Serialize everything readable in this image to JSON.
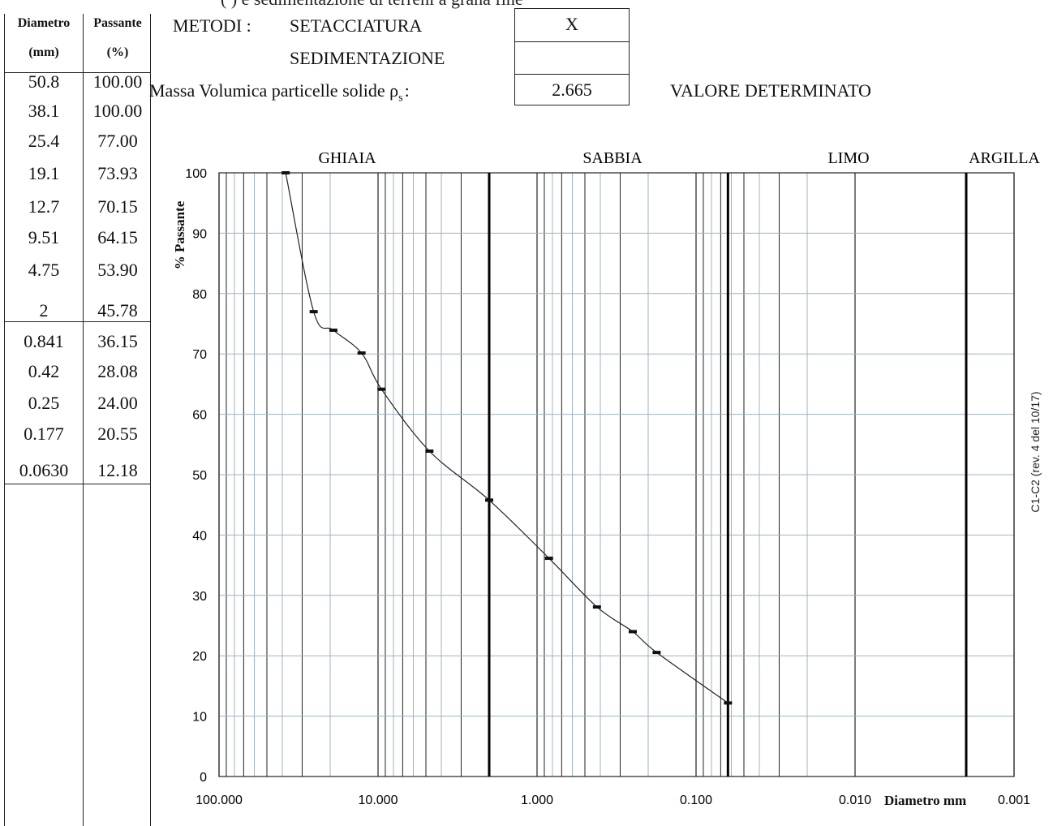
{
  "header": {
    "cutoff_text": "(                              )  e sedimentazione di terreni a grana fine",
    "method_label": "METODI :",
    "method_setacciatura": "SETACCIATURA",
    "method_sedimentazione": "SEDIMENTAZIONE",
    "setacciatura_mark": "X",
    "sedimentazione_mark": "",
    "density_label": "Massa Volumica particelle solide",
    "density_symbol": "ρ",
    "density_subscript": "s",
    "density_colon": ":",
    "density_value": "2.665",
    "density_status": "VALORE DETERMINATO"
  },
  "table": {
    "headers": [
      [
        "Diametro",
        "(mm)"
      ],
      [
        "Passante",
        "(%)"
      ]
    ],
    "rows": [
      [
        "50.8",
        "100.00"
      ],
      [
        "38.1",
        "100.00"
      ],
      [
        "25.4",
        "77.00"
      ],
      [
        "19.1",
        "73.93"
      ],
      [
        "12.7",
        "70.15"
      ],
      [
        "9.51",
        "64.15"
      ],
      [
        "4.75",
        "53.90"
      ],
      [
        "2",
        "45.78"
      ],
      [
        "0.841",
        "36.15"
      ],
      [
        "0.42",
        "28.08"
      ],
      [
        "0.25",
        "24.00"
      ],
      [
        "0.177",
        "20.55"
      ],
      [
        "0.0630",
        "12.18"
      ]
    ]
  },
  "side_note": "C1-C2  (rev. 4 del 10/17)",
  "chart_data": {
    "type": "line",
    "title": "",
    "xlabel": "Diametro mm",
    "ylabel": "% Passante",
    "x_scale": "log",
    "x_reversed": true,
    "xlim": [
      100,
      0.001
    ],
    "ylim": [
      0,
      100
    ],
    "x_ticks": [
      "100.000",
      "10.000",
      "1.000",
      "0.100",
      "0.010",
      "0.001"
    ],
    "y_ticks": [
      "0",
      "10",
      "20",
      "30",
      "40",
      "50",
      "60",
      "70",
      "80",
      "90",
      "100"
    ],
    "grid": true,
    "zones": [
      "GHIAIA",
      "SABBIA",
      "LIMO",
      "ARGILLA"
    ],
    "zone_boundaries_mm": [
      2,
      0.063,
      0.002
    ],
    "series": [
      {
        "x": [
          38.1,
          25.4,
          19.1,
          12.7,
          9.51,
          4.75,
          2,
          0.841,
          0.42,
          0.25,
          0.177,
          0.063
        ],
        "y": [
          100.0,
          77.0,
          73.93,
          70.15,
          64.15,
          53.9,
          45.78,
          36.15,
          28.08,
          24.0,
          20.55,
          12.18
        ]
      }
    ],
    "colors": {
      "grid_light": "#9fb3bf",
      "grid_dark": "#222222",
      "curve": "#222222"
    }
  }
}
